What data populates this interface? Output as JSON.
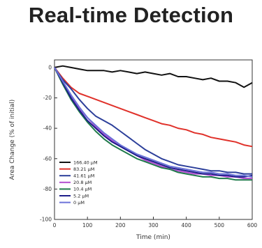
{
  "chart_data": {
    "type": "line",
    "title": "Real-time Detection",
    "xlabel": "Time (min)",
    "ylabel": "Area Change (% of initial)",
    "xlim": [
      0,
      600
    ],
    "ylim": [
      -100,
      5
    ],
    "xticks": [
      0,
      100,
      200,
      300,
      400,
      500,
      600
    ],
    "yticks": [
      0,
      -20,
      -40,
      -60,
      -80,
      -100
    ],
    "legend_position": "lower-left",
    "grid": false,
    "x": [
      0,
      25,
      50,
      75,
      100,
      125,
      150,
      175,
      200,
      225,
      250,
      275,
      300,
      325,
      350,
      375,
      400,
      425,
      450,
      475,
      500,
      525,
      550,
      575,
      600
    ],
    "series": [
      {
        "name": "166.40 μM",
        "color": "#111111",
        "values": [
          0,
          1,
          0,
          -1,
          -2,
          -2,
          -2,
          -3,
          -2,
          -3,
          -4,
          -3,
          -4,
          -5,
          -4,
          -6,
          -6,
          -7,
          -8,
          -7,
          -9,
          -9,
          -10,
          -13,
          -10
        ]
      },
      {
        "name": "83.21 μM",
        "color": "#e0312a",
        "values": [
          0,
          -7,
          -13,
          -17,
          -19,
          -21,
          -23,
          -25,
          -27,
          -29,
          -31,
          -33,
          -35,
          -37,
          -38,
          -40,
          -41,
          -43,
          -44,
          -46,
          -47,
          -48,
          -49,
          -51,
          -52
        ]
      },
      {
        "name": "41.61 μM",
        "color": "#2c3f9a",
        "values": [
          0,
          -8,
          -14,
          -21,
          -27,
          -32,
          -35,
          -38,
          -42,
          -46,
          -50,
          -54,
          -57,
          -60,
          -62,
          -64,
          -65,
          -66,
          -67,
          -68,
          -68,
          -69,
          -69,
          -70,
          -70
        ]
      },
      {
        "name": "20.8 μM",
        "color": "#b24fd0",
        "values": [
          0,
          -10,
          -19,
          -27,
          -33,
          -39,
          -44,
          -48,
          -52,
          -55,
          -58,
          -61,
          -63,
          -65,
          -67,
          -68,
          -69,
          -70,
          -70,
          -71,
          -71,
          -72,
          -72,
          -73,
          -73
        ]
      },
      {
        "name": "10.4 μM",
        "color": "#1f7a4a",
        "values": [
          0,
          -11,
          -21,
          -29,
          -36,
          -42,
          -47,
          -51,
          -54,
          -57,
          -60,
          -62,
          -64,
          -66,
          -67,
          -69,
          -70,
          -71,
          -72,
          -72,
          -73,
          -73,
          -74,
          -74,
          -74
        ]
      },
      {
        "name": "5.2 μM",
        "color": "#1d1e8a",
        "values": [
          0,
          -10,
          -20,
          -28,
          -35,
          -40,
          -45,
          -49,
          -52,
          -55,
          -58,
          -60,
          -62,
          -64,
          -66,
          -67,
          -68,
          -69,
          -70,
          -70,
          -71,
          -71,
          -72,
          -72,
          -71
        ]
      },
      {
        "name": "0 μM",
        "color": "#6a72d8",
        "values": [
          0,
          -9,
          -18,
          -26,
          -33,
          -38,
          -43,
          -47,
          -51,
          -54,
          -57,
          -59,
          -61,
          -63,
          -65,
          -66,
          -67,
          -68,
          -69,
          -69,
          -70,
          -70,
          -71,
          -71,
          -72
        ]
      }
    ]
  }
}
